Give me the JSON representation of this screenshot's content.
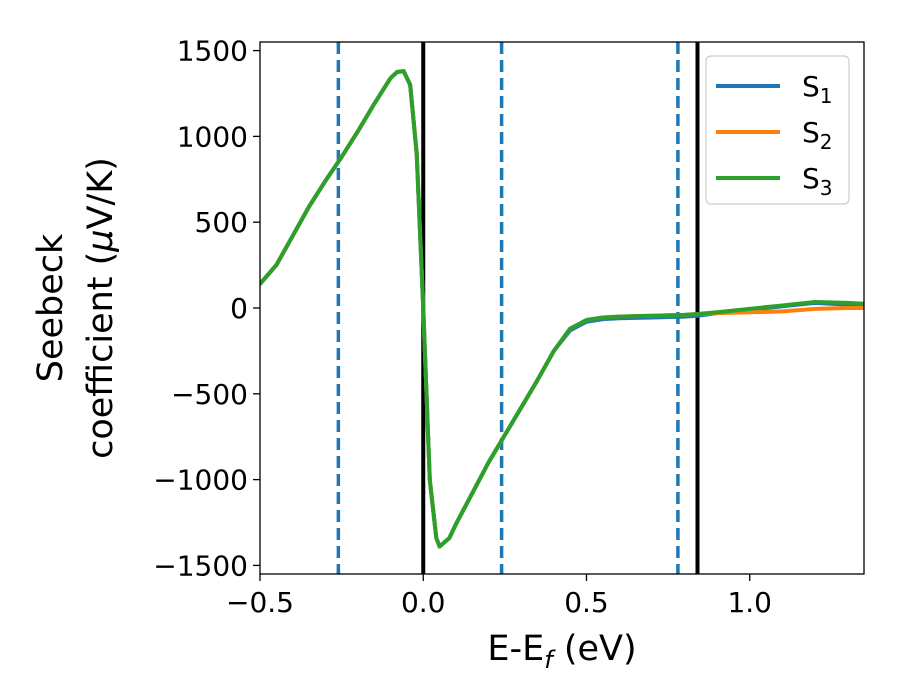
{
  "chart_data": {
    "type": "line",
    "xlabel": "E-E",
    "xlabel_sub": "f",
    "xlabel_unit": " (eV)",
    "ylabel_line1": "Seebeck",
    "ylabel_line2": "coefficient  (",
    "ylabel_mu": "μ",
    "ylabel_unit": "V/K)",
    "xlim": [
      -0.5,
      1.35
    ],
    "ylim": [
      -1550,
      1550
    ],
    "xticks": [
      -0.5,
      0.0,
      0.5,
      1.0
    ],
    "xtick_labels": [
      "−0.5",
      "0.0",
      "0.5",
      "1.0"
    ],
    "yticks": [
      -1500,
      -1000,
      -500,
      0,
      500,
      1000,
      1500
    ],
    "ytick_labels": [
      "−1500",
      "−1000",
      "−500",
      "0",
      "500",
      "1000",
      "1500"
    ],
    "legend_position": "top-right",
    "grid": false,
    "vlines": [
      {
        "x": -0.26,
        "style": "dashed",
        "color": "#1f77b4"
      },
      {
        "x": 0.0,
        "style": "solid",
        "color": "#000000"
      },
      {
        "x": 0.24,
        "style": "dashed",
        "color": "#1f77b4"
      },
      {
        "x": 0.78,
        "style": "dashed",
        "color": "#1f77b4"
      },
      {
        "x": 0.84,
        "style": "solid",
        "color": "#000000"
      }
    ],
    "series": [
      {
        "name": "S",
        "sub": "1",
        "color": "#1f77b4",
        "x": [
          -0.5,
          -0.45,
          -0.4,
          -0.35,
          -0.3,
          -0.25,
          -0.2,
          -0.15,
          -0.1,
          -0.08,
          -0.06,
          -0.04,
          -0.02,
          0.0,
          0.02,
          0.04,
          0.05,
          0.08,
          0.1,
          0.15,
          0.2,
          0.25,
          0.3,
          0.35,
          0.4,
          0.45,
          0.5,
          0.55,
          0.6,
          0.7,
          0.8,
          0.84,
          0.9,
          1.0,
          1.1,
          1.2,
          1.3,
          1.35
        ],
        "y": [
          140,
          250,
          420,
          590,
          740,
          880,
          1030,
          1190,
          1340,
          1375,
          1380,
          1300,
          900,
          0,
          -1000,
          -1340,
          -1390,
          -1340,
          -1260,
          -1080,
          -900,
          -740,
          -580,
          -420,
          -250,
          -130,
          -80,
          -65,
          -60,
          -55,
          -50,
          -45,
          -30,
          -10,
          10,
          30,
          20,
          15
        ]
      },
      {
        "name": "S",
        "sub": "2",
        "color": "#ff7f0e",
        "x": [
          -0.5,
          -0.45,
          -0.4,
          -0.35,
          -0.3,
          -0.25,
          -0.2,
          -0.15,
          -0.1,
          -0.08,
          -0.06,
          -0.04,
          -0.02,
          0.0,
          0.02,
          0.04,
          0.05,
          0.08,
          0.1,
          0.15,
          0.2,
          0.25,
          0.3,
          0.35,
          0.4,
          0.45,
          0.5,
          0.55,
          0.6,
          0.7,
          0.8,
          0.84,
          0.9,
          1.0,
          1.1,
          1.2,
          1.3,
          1.35
        ],
        "y": [
          140,
          250,
          420,
          590,
          740,
          880,
          1030,
          1190,
          1340,
          1375,
          1380,
          1300,
          900,
          0,
          -1000,
          -1340,
          -1390,
          -1340,
          -1260,
          -1080,
          -900,
          -740,
          -580,
          -420,
          -250,
          -120,
          -70,
          -55,
          -50,
          -45,
          -40,
          -35,
          -30,
          -25,
          -20,
          -5,
          0,
          0
        ]
      },
      {
        "name": "S",
        "sub": "3",
        "color": "#2ca02c",
        "x": [
          -0.5,
          -0.45,
          -0.4,
          -0.35,
          -0.3,
          -0.25,
          -0.2,
          -0.15,
          -0.1,
          -0.08,
          -0.06,
          -0.04,
          -0.02,
          0.0,
          0.02,
          0.04,
          0.05,
          0.08,
          0.1,
          0.15,
          0.2,
          0.25,
          0.3,
          0.35,
          0.4,
          0.45,
          0.5,
          0.55,
          0.6,
          0.7,
          0.8,
          0.84,
          0.9,
          1.0,
          1.1,
          1.2,
          1.3,
          1.35
        ],
        "y": [
          140,
          250,
          420,
          590,
          740,
          880,
          1030,
          1190,
          1340,
          1375,
          1380,
          1300,
          900,
          0,
          -1000,
          -1340,
          -1390,
          -1340,
          -1260,
          -1080,
          -900,
          -740,
          -580,
          -420,
          -250,
          -120,
          -70,
          -55,
          -50,
          -45,
          -40,
          -35,
          -25,
          -5,
          15,
          35,
          30,
          25
        ]
      }
    ]
  }
}
